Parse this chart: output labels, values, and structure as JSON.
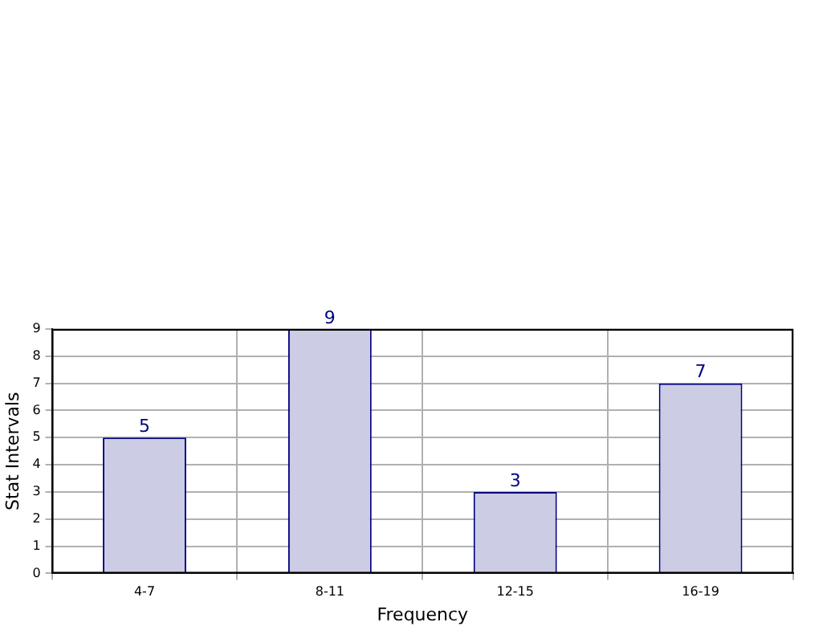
{
  "chart_data": {
    "type": "bar",
    "xlabel": "Frequency",
    "ylabel": "Stat Intervals",
    "categories": [
      "4-7",
      "8-11",
      "12-15",
      "16-19"
    ],
    "values": [
      5,
      9,
      3,
      7
    ],
    "color": "#cccce4",
    "ylim": [
      0,
      9
    ],
    "yticks": [
      0,
      1,
      2,
      3,
      4,
      5,
      6,
      7,
      8,
      9
    ],
    "grid": true,
    "data_labels": true,
    "legend": false
  }
}
